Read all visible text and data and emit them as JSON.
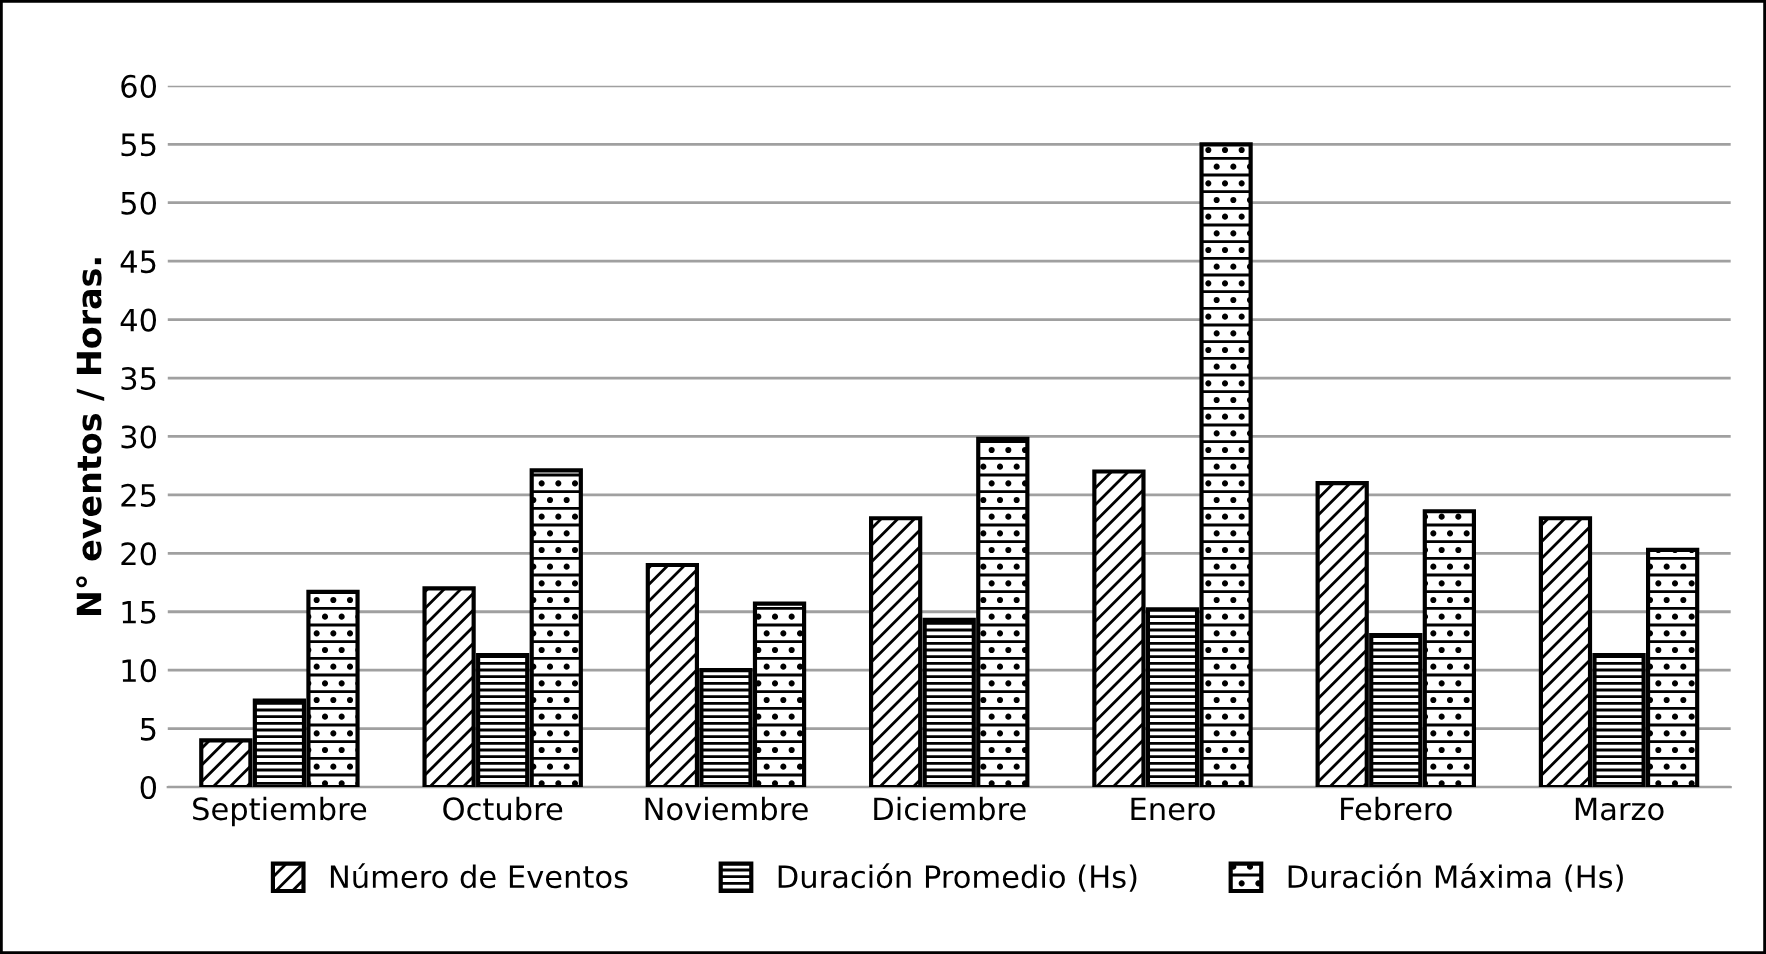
{
  "chart_data": {
    "type": "bar",
    "ylabel": "N° eventos / Horas.",
    "categories": [
      "Septiembre",
      "Octubre",
      "Noviembre",
      "Diciembre",
      "Enero",
      "Febrero",
      "Marzo"
    ],
    "series": [
      {
        "name": "Número de Eventos",
        "color": "#000000",
        "values": [
          4,
          17,
          19,
          23,
          27,
          26,
          23
        ]
      },
      {
        "name": "Duración Promedio (Hs)",
        "color": "#000000",
        "values": [
          7.4,
          11.3,
          10,
          14.3,
          15.2,
          13,
          11.3
        ]
      },
      {
        "name": "Duración Máxima (Hs)",
        "color": "#000000",
        "values": [
          16.7,
          27.1,
          15.7,
          29.8,
          55,
          23.6,
          20.3
        ]
      }
    ],
    "ylim": [
      0,
      60
    ],
    "yticks": [
      0,
      5,
      10,
      15,
      20,
      25,
      30,
      35,
      40,
      45,
      50,
      55,
      60
    ],
    "grid": "y",
    "legend": "bottom"
  }
}
